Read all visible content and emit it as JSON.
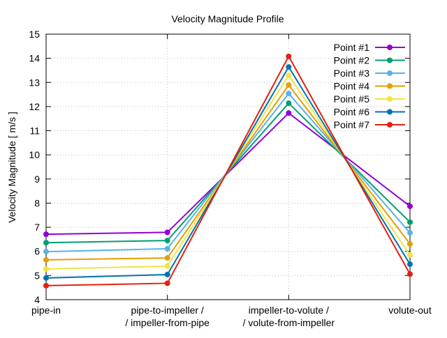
{
  "chart_data": {
    "type": "line",
    "title": "Velocity Magnitude Profile",
    "xlabel": "",
    "ylabel": "Velocity Magnitude [ m/s ]",
    "ylim": [
      4,
      15
    ],
    "yticks": [
      "4",
      "5",
      "6",
      "7",
      "8",
      "9",
      "10",
      "11",
      "12",
      "13",
      "14",
      "15"
    ],
    "categories": [
      [
        "pipe-in"
      ],
      [
        "pipe-to-impeller /",
        "/ impeller-from-pipe"
      ],
      [
        "impeller-to-volute /",
        "/ volute-from-impeller"
      ],
      [
        "volute-out"
      ]
    ],
    "grid": true,
    "legend_position": "top-right",
    "series": [
      {
        "name": "Point #1",
        "color": "#9400d3",
        "values": [
          6.71,
          6.79,
          11.73,
          7.87
        ]
      },
      {
        "name": "Point #2",
        "color": "#009e73",
        "values": [
          6.36,
          6.45,
          12.14,
          7.21
        ]
      },
      {
        "name": "Point #3",
        "color": "#56b4e9",
        "values": [
          5.99,
          6.11,
          12.54,
          6.77
        ]
      },
      {
        "name": "Point #4",
        "color": "#e69f00",
        "values": [
          5.65,
          5.73,
          12.89,
          6.31
        ]
      },
      {
        "name": "Point #5",
        "color": "#f0e442",
        "values": [
          5.27,
          5.39,
          13.29,
          5.85
        ]
      },
      {
        "name": "Point #6",
        "color": "#0072b2",
        "values": [
          4.9,
          5.04,
          13.64,
          5.47
        ]
      },
      {
        "name": "Point #7",
        "color": "#e51e10",
        "values": [
          4.58,
          4.68,
          14.08,
          5.06
        ]
      }
    ]
  }
}
